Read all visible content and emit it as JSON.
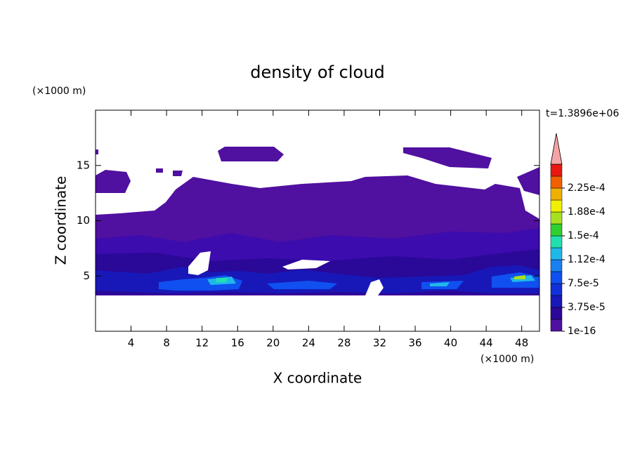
{
  "chart_data": {
    "type": "contour",
    "title": "density of cloud",
    "x_label": "X coordinate",
    "y_label": "Z coordinate",
    "x_unit": "(×1000 m)",
    "y_unit": "(×1000 m)",
    "time_label": "t=1.3896e+06",
    "xlim": [
      0,
      50
    ],
    "ylim": [
      0,
      20
    ],
    "xticks": [
      4,
      8,
      12,
      16,
      20,
      24,
      28,
      32,
      36,
      40,
      44,
      48
    ],
    "yticks": [
      5,
      10,
      15
    ],
    "colorbar": {
      "levels": [
        {
          "value": 1e-16,
          "label": "1e-16"
        },
        {
          "value": 3.75e-05,
          "label": "3.75e-5"
        },
        {
          "value": 7.5e-05,
          "label": "7.5e-5"
        },
        {
          "value": 0.0001125,
          "label": "1.12e-4"
        },
        {
          "value": 0.00015,
          "label": "1.5e-4"
        },
        {
          "value": 0.0001875,
          "label": "1.88e-4"
        },
        {
          "value": 0.000225,
          "label": "2.25e-4"
        }
      ],
      "colors": [
        "#5010a0",
        "#2a0898",
        "#1818b8",
        "#1030d8",
        "#1050f0",
        "#1880f0",
        "#20b8e8",
        "#20e0b0",
        "#30d030",
        "#a8e020",
        "#f0f000",
        "#f0b000",
        "#f06000",
        "#e81810"
      ],
      "extend_color": "#f4a4a4"
    }
  }
}
